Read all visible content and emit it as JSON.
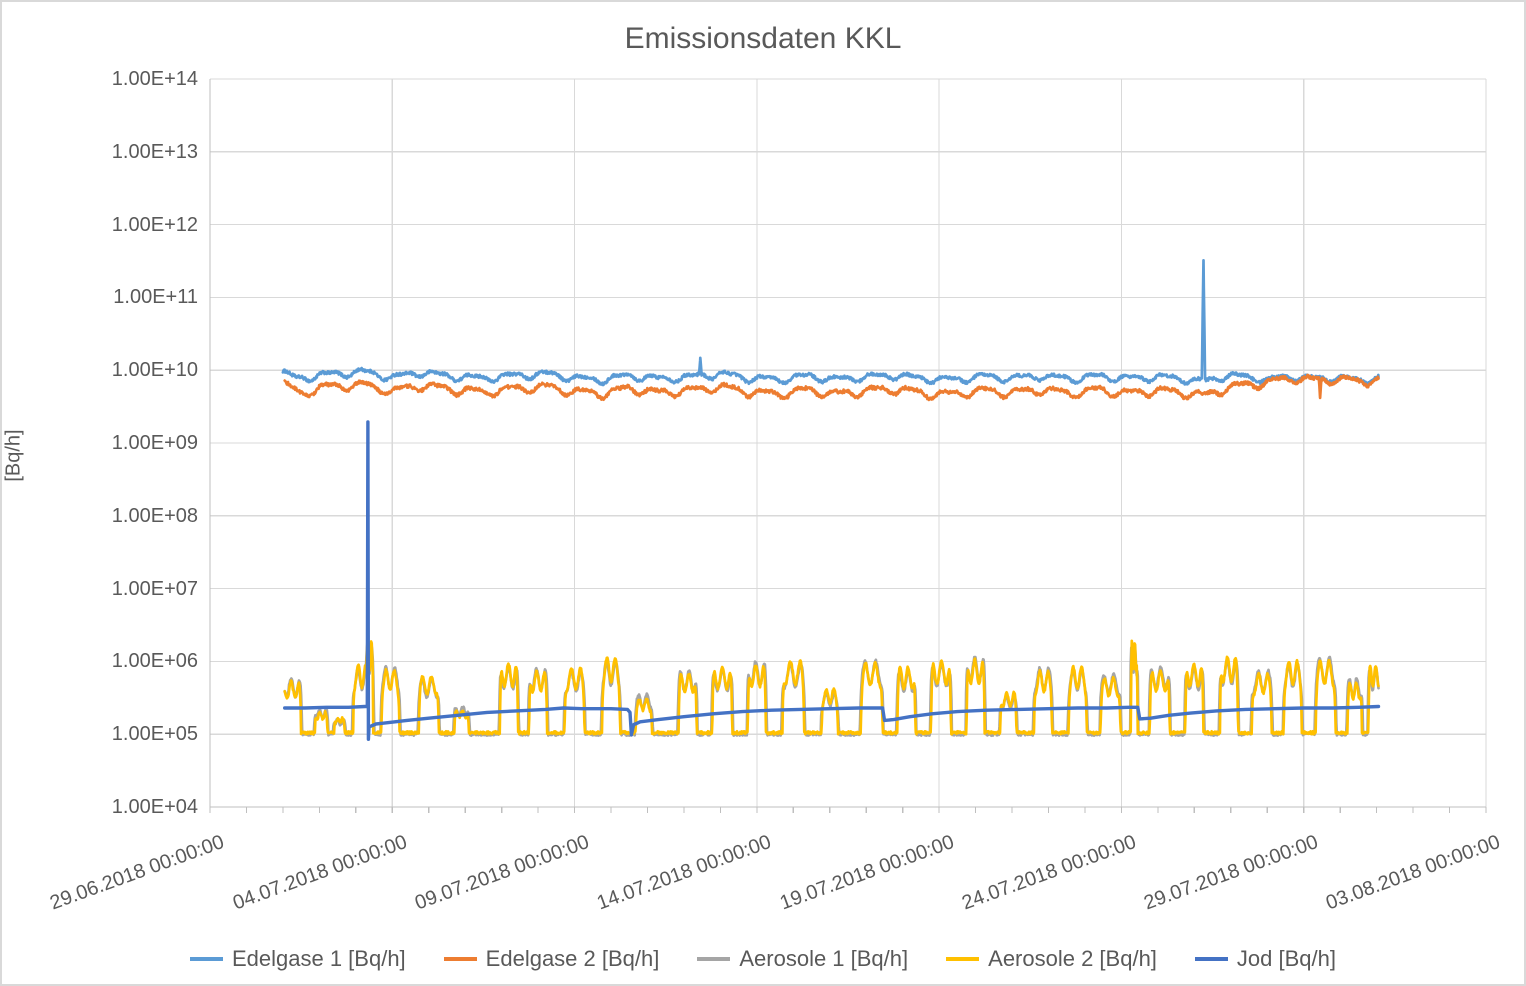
{
  "chart_data": {
    "type": "line",
    "title": "Emissionsdaten KKL",
    "ylabel": "[Bq/h]",
    "xlabel": "",
    "y_scale": "log10",
    "ylim_log10": [
      4,
      14
    ],
    "y_tick_labels": [
      "1.00E+14",
      "1.00E+13",
      "1.00E+12",
      "1.00E+11",
      "1.00E+10",
      "1.00E+09",
      "1.00E+08",
      "1.00E+07",
      "1.00E+06",
      "1.00E+05",
      "1.00E+04"
    ],
    "x_range_days": [
      0,
      35
    ],
    "x_tick_interval_days": 5,
    "x_minor_tick_interval_days": 1,
    "x_tick_labels": [
      "29.06.2018 00:00:00",
      "04.07.2018 00:00:00",
      "09.07.2018 00:00:00",
      "14.07.2018 00:00:00",
      "19.07.2018 00:00:00",
      "24.07.2018 00:00:00",
      "29.07.2018 00:00:00",
      "03.08.2018 00:00:00"
    ],
    "x_description": "days after 29.06.2018 00:00:00; data runs 01.07.2018 to 31.07.2018",
    "grid": true,
    "legend_position": "bottom",
    "colors": {
      "background": "#FFFFFF",
      "grid": "#D9D9D9",
      "axis": "#BFBFBF",
      "text": "#595959",
      "border": "#D9D9D9"
    },
    "series": [
      {
        "name": "Edelgase 1 [Bq/h]",
        "color": "#5B9BD5",
        "model": "wavy",
        "stroke_width": 2.7,
        "x_start_day": 2.0,
        "x_end_day": 32.05,
        "trend_day_log10": [
          [
            2.0,
            9.97
          ],
          [
            2.4,
            9.88
          ],
          [
            3.0,
            9.93
          ],
          [
            3.5,
            9.95
          ],
          [
            4.2,
            9.98
          ],
          [
            5.0,
            9.9
          ],
          [
            5.8,
            9.97
          ],
          [
            6.5,
            9.92
          ],
          [
            7.5,
            9.89
          ],
          [
            8.5,
            9.93
          ],
          [
            9.3,
            9.95
          ],
          [
            10.0,
            9.89
          ],
          [
            10.8,
            9.87
          ],
          [
            11.5,
            9.93
          ],
          [
            12.3,
            9.88
          ],
          [
            13.2,
            9.91
          ],
          [
            14.0,
            9.95
          ],
          [
            14.8,
            9.89
          ],
          [
            15.6,
            9.87
          ],
          [
            16.4,
            9.92
          ],
          [
            17.2,
            9.87
          ],
          [
            18.0,
            9.91
          ],
          [
            18.8,
            9.93
          ],
          [
            19.6,
            9.88
          ],
          [
            20.4,
            9.87
          ],
          [
            21.2,
            9.91
          ],
          [
            22.0,
            9.89
          ],
          [
            22.8,
            9.92
          ],
          [
            23.6,
            9.88
          ],
          [
            24.4,
            9.92
          ],
          [
            25.2,
            9.88
          ],
          [
            26.0,
            9.91
          ],
          [
            26.7,
            9.88
          ],
          [
            27.3,
            9.84
          ],
          [
            27.9,
            9.93
          ],
          [
            28.5,
            9.9
          ],
          [
            29.1,
            9.87
          ],
          [
            29.7,
            9.91
          ],
          [
            30.3,
            9.88
          ],
          [
            30.9,
            9.9
          ],
          [
            31.5,
            9.86
          ],
          [
            32.05,
            9.89
          ]
        ],
        "wave": {
          "period_days": 1,
          "amplitude_log10": 0.04,
          "amplitude2_log10": 0.018
        },
        "noise_log10": 0.021,
        "spikes_day_peaklog10_width": [
          [
            13.45,
            10.17,
            0.07
          ],
          [
            27.25,
            11.51,
            0.09
          ]
        ]
      },
      {
        "name": "Edelgase 2 [Bq/h]",
        "color": "#ED7D31",
        "model": "wavy",
        "stroke_width": 2.7,
        "x_start_day": 2.05,
        "x_end_day": 32.05,
        "trend_day_log10": [
          [
            2.05,
            9.8
          ],
          [
            2.5,
            9.67
          ],
          [
            3.0,
            9.76
          ],
          [
            3.5,
            9.78
          ],
          [
            4.2,
            9.8
          ],
          [
            5.0,
            9.71
          ],
          [
            5.8,
            9.79
          ],
          [
            6.5,
            9.74
          ],
          [
            7.5,
            9.7
          ],
          [
            8.5,
            9.75
          ],
          [
            9.3,
            9.77
          ],
          [
            10.0,
            9.7
          ],
          [
            10.8,
            9.68
          ],
          [
            11.5,
            9.75
          ],
          [
            12.3,
            9.69
          ],
          [
            13.2,
            9.72
          ],
          [
            14.0,
            9.77
          ],
          [
            14.8,
            9.7
          ],
          [
            15.6,
            9.67
          ],
          [
            16.4,
            9.73
          ],
          [
            17.2,
            9.67
          ],
          [
            18.0,
            9.72
          ],
          [
            18.8,
            9.74
          ],
          [
            19.6,
            9.68
          ],
          [
            20.4,
            9.67
          ],
          [
            21.2,
            9.72
          ],
          [
            22.0,
            9.69
          ],
          [
            22.8,
            9.73
          ],
          [
            23.6,
            9.68
          ],
          [
            24.4,
            9.73
          ],
          [
            25.2,
            9.68
          ],
          [
            26.0,
            9.72
          ],
          [
            26.7,
            9.69
          ],
          [
            27.3,
            9.65
          ],
          [
            27.9,
            9.76
          ],
          [
            28.5,
            9.8
          ],
          [
            29.1,
            9.84
          ],
          [
            29.7,
            9.89
          ],
          [
            30.3,
            9.86
          ],
          [
            30.9,
            9.88
          ],
          [
            31.5,
            9.84
          ],
          [
            32.05,
            9.87
          ]
        ],
        "wave": {
          "period_days": 1,
          "amplitude_log10": 0.05,
          "amplitude2_log10": 0.02
        },
        "noise_log10": 0.024,
        "spikes_day_peaklog10_width": [
          [
            30.45,
            9.62,
            0.07
          ]
        ]
      },
      {
        "name": "Aerosole 1 [Bq/h]",
        "color": "#A5A5A5",
        "model": "pulses",
        "stroke_width": 2.7,
        "x_start_day": 2.05,
        "x_end_day": 32.05,
        "baseline_log10": 5.0,
        "noise_log10": 0.02,
        "pulses_day_peaklog10_width": [
          [
            2.25,
            5.76,
            0.55
          ],
          [
            3.05,
            5.34,
            0.4
          ],
          [
            3.55,
            5.2,
            0.35
          ],
          [
            4.15,
            5.9,
            0.5
          ],
          [
            4.37,
            6.22,
            0.26
          ],
          [
            4.95,
            5.92,
            0.55
          ],
          [
            6.0,
            5.76,
            0.6
          ],
          [
            6.9,
            5.38,
            0.45
          ],
          [
            8.2,
            5.92,
            0.55
          ],
          [
            9.0,
            5.9,
            0.55
          ],
          [
            10.0,
            5.86,
            0.6
          ],
          [
            11.0,
            6.0,
            0.55
          ],
          [
            11.9,
            5.54,
            0.5
          ],
          [
            13.1,
            5.87,
            0.55
          ],
          [
            14.05,
            5.88,
            0.6
          ],
          [
            15.0,
            5.99,
            0.55
          ],
          [
            16.0,
            5.96,
            0.65
          ],
          [
            17.0,
            5.57,
            0.5
          ],
          [
            18.15,
            6.01,
            0.65
          ],
          [
            19.1,
            5.87,
            0.55
          ],
          [
            20.05,
            5.96,
            0.6
          ],
          [
            21.0,
            6.06,
            0.55
          ],
          [
            21.9,
            5.52,
            0.5
          ],
          [
            22.85,
            5.9,
            0.55
          ],
          [
            23.8,
            5.87,
            0.55
          ],
          [
            24.7,
            5.82,
            0.6
          ],
          [
            25.35,
            6.2,
            0.22
          ],
          [
            26.05,
            5.92,
            0.6
          ],
          [
            27.0,
            5.91,
            0.55
          ],
          [
            27.95,
            6.01,
            0.55
          ],
          [
            28.85,
            5.87,
            0.6
          ],
          [
            29.7,
            5.95,
            0.55
          ],
          [
            30.6,
            6.05,
            0.6
          ],
          [
            31.4,
            5.76,
            0.45
          ],
          [
            31.95,
            5.9,
            0.4
          ]
        ]
      },
      {
        "name": "Aerosole 2 [Bq/h]",
        "color": "#FFC000",
        "model": "pulses",
        "stroke_width": 2.7,
        "x_start_day": 2.05,
        "x_end_day": 32.05,
        "baseline_log10": 5.02,
        "noise_log10": 0.02,
        "pulses_day_peaklog10_width": [
          [
            2.25,
            5.72,
            0.5
          ],
          [
            3.05,
            5.3,
            0.35
          ],
          [
            3.55,
            5.22,
            0.3
          ],
          [
            4.15,
            5.95,
            0.45
          ],
          [
            4.37,
            6.3,
            0.22
          ],
          [
            4.95,
            5.88,
            0.5
          ],
          [
            6.0,
            5.8,
            0.55
          ],
          [
            6.9,
            5.32,
            0.4
          ],
          [
            8.2,
            5.97,
            0.5
          ],
          [
            9.0,
            5.86,
            0.5
          ],
          [
            10.0,
            5.9,
            0.55
          ],
          [
            11.0,
            6.05,
            0.5
          ],
          [
            11.9,
            5.48,
            0.45
          ],
          [
            13.1,
            5.83,
            0.5
          ],
          [
            14.05,
            5.92,
            0.55
          ],
          [
            15.0,
            5.95,
            0.5
          ],
          [
            16.0,
            6.0,
            0.6
          ],
          [
            17.0,
            5.62,
            0.45
          ],
          [
            18.15,
            5.97,
            0.6
          ],
          [
            19.1,
            5.92,
            0.5
          ],
          [
            20.05,
            6.0,
            0.55
          ],
          [
            21.0,
            6.02,
            0.5
          ],
          [
            21.9,
            5.57,
            0.45
          ],
          [
            22.85,
            5.86,
            0.5
          ],
          [
            23.8,
            5.92,
            0.5
          ],
          [
            24.7,
            5.77,
            0.55
          ],
          [
            25.35,
            6.28,
            0.18
          ],
          [
            26.05,
            5.87,
            0.55
          ],
          [
            27.0,
            5.96,
            0.5
          ],
          [
            27.95,
            6.06,
            0.5
          ],
          [
            28.85,
            5.82,
            0.55
          ],
          [
            29.7,
            6.0,
            0.5
          ],
          [
            30.6,
            6.0,
            0.55
          ],
          [
            31.4,
            5.7,
            0.4
          ],
          [
            31.95,
            5.95,
            0.35
          ]
        ]
      },
      {
        "name": "Jod [Bq/h]",
        "color": "#4472C4",
        "model": "points",
        "stroke_width": 3.4,
        "points_day_log10": [
          [
            2.05,
            5.36
          ],
          [
            2.6,
            5.36
          ],
          [
            3.2,
            5.37
          ],
          [
            3.8,
            5.37
          ],
          [
            4.25,
            5.38
          ],
          [
            4.315,
            5.38
          ],
          [
            4.33,
            9.29
          ],
          [
            4.345,
            4.93
          ],
          [
            4.36,
            5.1
          ],
          [
            4.55,
            5.14
          ],
          [
            4.9,
            5.16
          ],
          [
            5.4,
            5.19
          ],
          [
            6.0,
            5.22
          ],
          [
            6.8,
            5.26
          ],
          [
            7.6,
            5.3
          ],
          [
            8.4,
            5.32
          ],
          [
            9.2,
            5.34
          ],
          [
            9.7,
            5.36
          ],
          [
            10.2,
            5.35
          ],
          [
            11.0,
            5.35
          ],
          [
            11.45,
            5.34
          ],
          [
            11.52,
            5.3
          ],
          [
            11.56,
            4.99
          ],
          [
            11.62,
            5.13
          ],
          [
            11.8,
            5.17
          ],
          [
            12.3,
            5.2
          ],
          [
            13.0,
            5.24
          ],
          [
            13.8,
            5.28
          ],
          [
            14.6,
            5.31
          ],
          [
            15.4,
            5.33
          ],
          [
            16.2,
            5.34
          ],
          [
            17.0,
            5.35
          ],
          [
            17.8,
            5.36
          ],
          [
            18.35,
            5.36
          ],
          [
            18.45,
            5.36
          ],
          [
            18.5,
            5.19
          ],
          [
            18.75,
            5.2
          ],
          [
            19.2,
            5.24
          ],
          [
            19.8,
            5.28
          ],
          [
            20.5,
            5.31
          ],
          [
            21.3,
            5.33
          ],
          [
            22.2,
            5.34
          ],
          [
            23.0,
            5.35
          ],
          [
            23.8,
            5.36
          ],
          [
            24.6,
            5.36
          ],
          [
            25.2,
            5.37
          ],
          [
            25.38,
            5.37
          ],
          [
            25.45,
            5.37
          ],
          [
            25.5,
            5.21
          ],
          [
            25.8,
            5.22
          ],
          [
            26.3,
            5.26
          ],
          [
            26.9,
            5.29
          ],
          [
            27.6,
            5.32
          ],
          [
            28.4,
            5.34
          ],
          [
            29.2,
            5.35
          ],
          [
            30.0,
            5.36
          ],
          [
            30.8,
            5.36
          ],
          [
            31.5,
            5.37
          ],
          [
            32.05,
            5.38
          ]
        ]
      }
    ]
  }
}
